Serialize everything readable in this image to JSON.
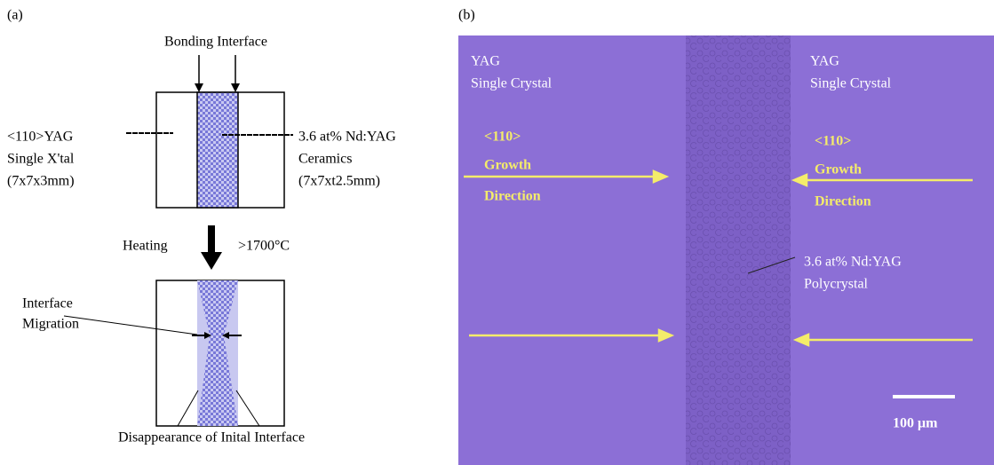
{
  "panel_a": {
    "label": "(a)",
    "bonding": "Bonding Interface",
    "left": [
      "<110>YAG",
      "Single X'tal",
      "(7x7x3mm)"
    ],
    "right": [
      "3.6 at% Nd:YAG",
      "Ceramics",
      "(7x7xt2.5mm)"
    ],
    "heating": "Heating",
    "temperature": ">1700°C",
    "migration": [
      "Interface",
      "Migration"
    ],
    "disappearance": "Disappearance of Inital Interface"
  },
  "panel_b": {
    "label": "(b)",
    "left_crystal": [
      "YAG",
      "Single Crystal"
    ],
    "right_crystal": [
      "YAG",
      "Single Crystal"
    ],
    "left_direction": [
      "<110>",
      "Growth",
      "Direction"
    ],
    "right_direction": [
      "<110>",
      "Growth",
      "Direction"
    ],
    "center": [
      "3.6 at% Nd:YAG",
      "Polycrystal"
    ],
    "scale": "100 μm"
  }
}
